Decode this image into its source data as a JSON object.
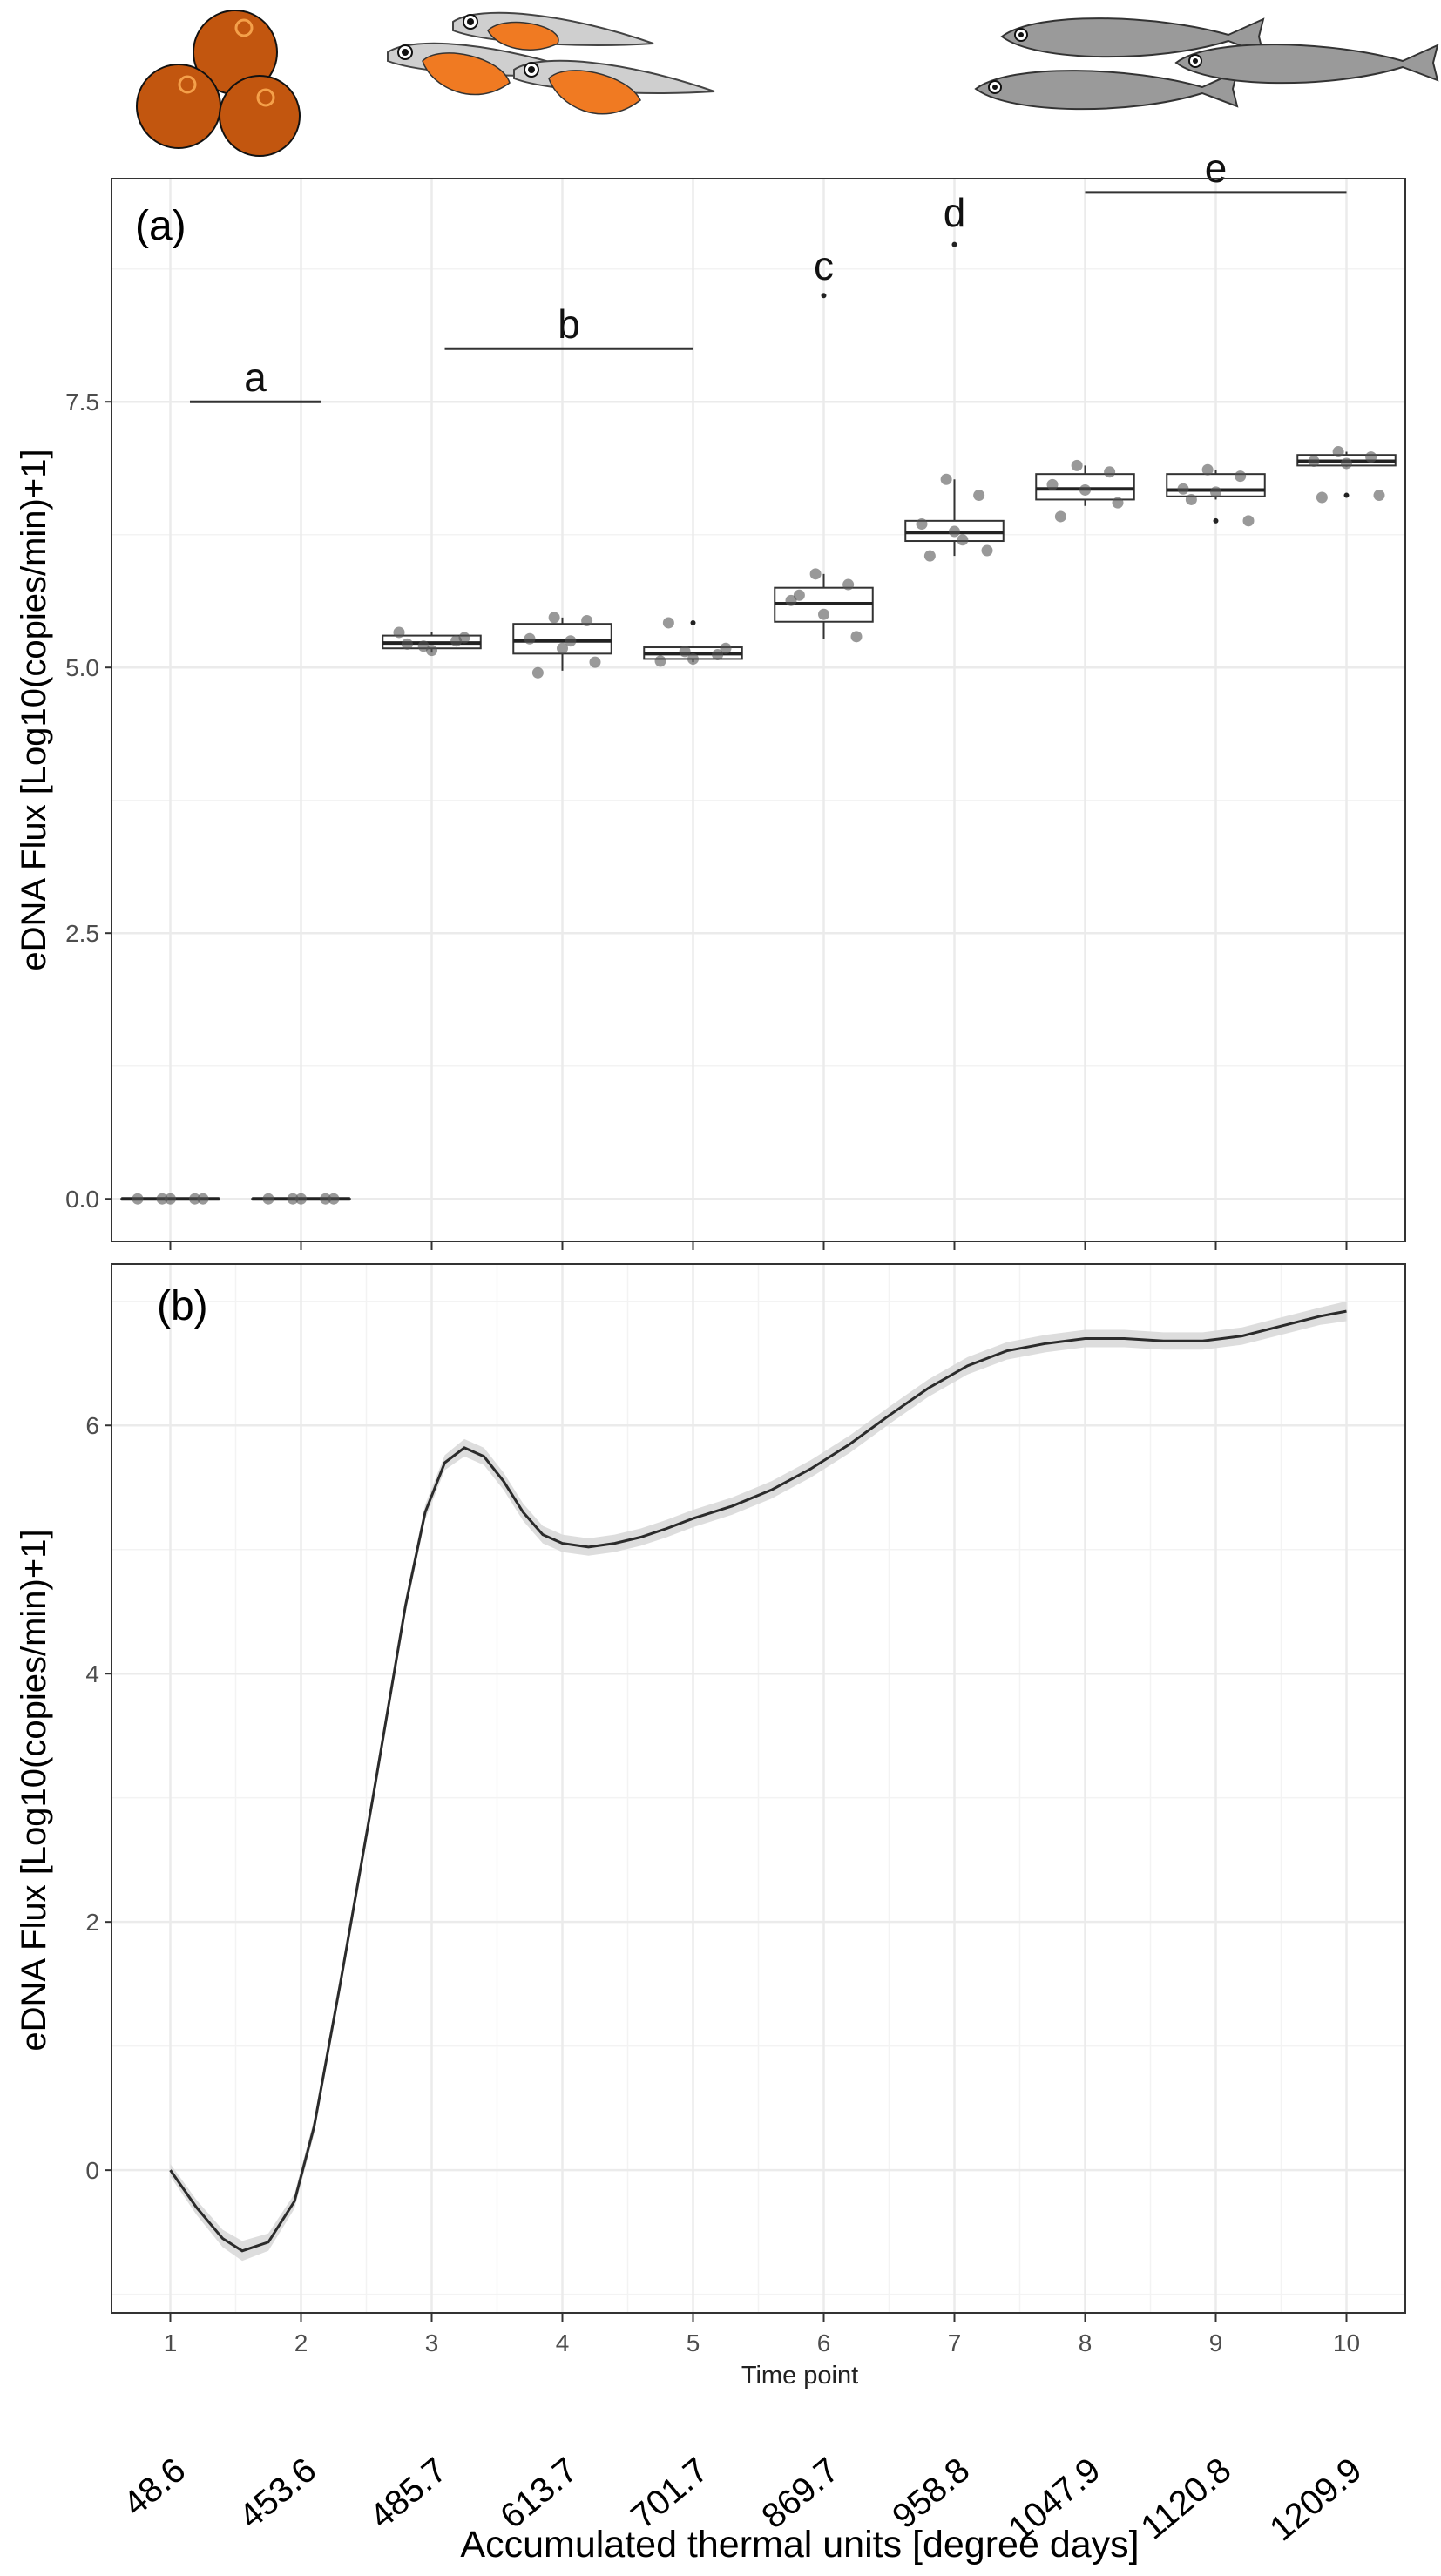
{
  "figure": {
    "xlabel": "Accumulated thermal units [degree days]",
    "shared_xlabel": "Time point",
    "atu_labels": [
      "48.6",
      "453.6",
      "485.7",
      "613.7",
      "701.7",
      "869.7",
      "958.8",
      "1047.9",
      "1120.8",
      "1209.9"
    ],
    "illustrations": [
      "eggs-illustration",
      "larvae-illustration",
      "juvenile-fish-illustration"
    ],
    "colors": {
      "egg": "#c2560f",
      "larva_yolk": "#f07a22",
      "fish_body": "#9a9a9a",
      "panel_border": "#333333",
      "grid": "#ebebeb",
      "line": "#2b2b2b",
      "ribbon": "#d9d9d9"
    }
  },
  "chart_data": [
    {
      "panel": "(a)",
      "type": "box",
      "ylabel": "eDNA Flux [Log10(copies/min)+1]",
      "categories": [
        1,
        2,
        3,
        4,
        5,
        6,
        7,
        8,
        9,
        10
      ],
      "ylim": [
        -0.4,
        9.6
      ],
      "yticks": [
        "0.0",
        "2.5",
        "5.0",
        "7.5"
      ],
      "ytick_values": [
        0,
        2.5,
        5,
        7.5
      ],
      "grid": true,
      "boxes": [
        {
          "x": 1,
          "min": 0,
          "q1": 0,
          "median": 0,
          "q3": 0,
          "max": 0,
          "outliers": []
        },
        {
          "x": 2,
          "min": 0,
          "q1": 0,
          "median": 0,
          "q3": 0,
          "max": 0,
          "outliers": []
        },
        {
          "x": 3,
          "min": 5.14,
          "q1": 5.18,
          "median": 5.23,
          "q3": 5.3,
          "max": 5.33,
          "outliers": []
        },
        {
          "x": 4,
          "min": 4.97,
          "q1": 5.13,
          "median": 5.25,
          "q3": 5.41,
          "max": 5.47,
          "outliers": []
        },
        {
          "x": 5,
          "min": 5.05,
          "q1": 5.08,
          "median": 5.13,
          "q3": 5.19,
          "max": 5.2,
          "outliers": [
            5.42
          ]
        },
        {
          "x": 6,
          "min": 5.27,
          "q1": 5.43,
          "median": 5.6,
          "q3": 5.75,
          "max": 5.88,
          "outliers": [
            8.5
          ]
        },
        {
          "x": 7,
          "min": 6.05,
          "q1": 6.19,
          "median": 6.27,
          "q3": 6.38,
          "max": 6.77,
          "outliers": [
            8.98
          ]
        },
        {
          "x": 8,
          "min": 6.52,
          "q1": 6.58,
          "median": 6.68,
          "q3": 6.82,
          "max": 6.9,
          "outliers": []
        },
        {
          "x": 9,
          "min": 6.58,
          "q1": 6.61,
          "median": 6.67,
          "q3": 6.82,
          "max": 6.86,
          "outliers": [
            6.38
          ]
        },
        {
          "x": 10,
          "min": 6.89,
          "q1": 6.9,
          "median": 6.94,
          "q3": 7.0,
          "max": 7.03,
          "outliers": [
            6.62
          ]
        }
      ],
      "points": [
        {
          "x": 1,
          "y": 0
        },
        {
          "x": 1,
          "y": 0
        },
        {
          "x": 1,
          "y": 0
        },
        {
          "x": 1,
          "y": 0
        },
        {
          "x": 1,
          "y": 0
        },
        {
          "x": 2,
          "y": 0
        },
        {
          "x": 2,
          "y": 0
        },
        {
          "x": 2,
          "y": 0
        },
        {
          "x": 2,
          "y": 0
        },
        {
          "x": 2,
          "y": 0
        },
        {
          "x": 3,
          "y": 5.2
        },
        {
          "x": 3,
          "y": 5.25
        },
        {
          "x": 3,
          "y": 5.33
        },
        {
          "x": 3,
          "y": 5.16
        },
        {
          "x": 3,
          "y": 5.28
        },
        {
          "x": 3,
          "y": 5.22
        },
        {
          "x": 4,
          "y": 5.47
        },
        {
          "x": 4,
          "y": 5.44
        },
        {
          "x": 4,
          "y": 5.27
        },
        {
          "x": 4,
          "y": 5.18
        },
        {
          "x": 4,
          "y": 5.05
        },
        {
          "x": 4,
          "y": 4.95
        },
        {
          "x": 4,
          "y": 5.25
        },
        {
          "x": 5,
          "y": 5.15
        },
        {
          "x": 5,
          "y": 5.12
        },
        {
          "x": 5,
          "y": 5.06
        },
        {
          "x": 5,
          "y": 5.08
        },
        {
          "x": 5,
          "y": 5.18
        },
        {
          "x": 5,
          "y": 5.42
        },
        {
          "x": 6,
          "y": 5.88
        },
        {
          "x": 6,
          "y": 5.78
        },
        {
          "x": 6,
          "y": 5.63
        },
        {
          "x": 6,
          "y": 5.5
        },
        {
          "x": 6,
          "y": 5.29
        },
        {
          "x": 6,
          "y": 5.68
        },
        {
          "x": 7,
          "y": 6.77
        },
        {
          "x": 7,
          "y": 6.62
        },
        {
          "x": 7,
          "y": 6.35
        },
        {
          "x": 7,
          "y": 6.28
        },
        {
          "x": 7,
          "y": 6.1
        },
        {
          "x": 7,
          "y": 6.05
        },
        {
          "x": 7,
          "y": 6.2
        },
        {
          "x": 8,
          "y": 6.9
        },
        {
          "x": 8,
          "y": 6.84
        },
        {
          "x": 8,
          "y": 6.72
        },
        {
          "x": 8,
          "y": 6.67
        },
        {
          "x": 8,
          "y": 6.55
        },
        {
          "x": 8,
          "y": 6.42
        },
        {
          "x": 9,
          "y": 6.86
        },
        {
          "x": 9,
          "y": 6.8
        },
        {
          "x": 9,
          "y": 6.68
        },
        {
          "x": 9,
          "y": 6.65
        },
        {
          "x": 9,
          "y": 6.38
        },
        {
          "x": 9,
          "y": 6.58
        },
        {
          "x": 10,
          "y": 7.03
        },
        {
          "x": 10,
          "y": 6.98
        },
        {
          "x": 10,
          "y": 6.94
        },
        {
          "x": 10,
          "y": 6.92
        },
        {
          "x": 10,
          "y": 6.62
        },
        {
          "x": 10,
          "y": 6.6
        }
      ],
      "annotations": [
        {
          "label": "a",
          "x_from": 1.15,
          "x_to": 2.15,
          "y": 7.5
        },
        {
          "label": "b",
          "x_from": 3.1,
          "x_to": 5.0,
          "y": 8.0
        },
        {
          "label": "c",
          "x_from": 6.0,
          "x_to": 6.0,
          "y": 8.55
        },
        {
          "label": "d",
          "x_from": 7.0,
          "x_to": 7.0,
          "y": 9.05
        },
        {
          "label": "e",
          "x_from": 8.0,
          "x_to": 10.0,
          "y": 9.47
        }
      ]
    },
    {
      "panel": "(b)",
      "type": "line",
      "ylabel": "eDNA Flux [Log10(copies/min)+1]",
      "xlabel": "Time point",
      "xlim": [
        0.55,
        10.45
      ],
      "ylim": [
        -1.15,
        7.3
      ],
      "xticks": [
        1,
        2,
        3,
        4,
        5,
        6,
        7,
        8,
        9,
        10
      ],
      "yticks": [
        0,
        2,
        4,
        6
      ],
      "grid": true,
      "x": [
        1.0,
        1.2,
        1.4,
        1.55,
        1.75,
        1.95,
        2.1,
        2.3,
        2.55,
        2.8,
        2.95,
        3.1,
        3.25,
        3.4,
        3.55,
        3.7,
        3.85,
        4.0,
        4.2,
        4.4,
        4.6,
        4.8,
        5.0,
        5.3,
        5.6,
        5.9,
        6.2,
        6.5,
        6.8,
        7.1,
        7.4,
        7.7,
        8.0,
        8.3,
        8.6,
        8.9,
        9.2,
        9.5,
        9.8,
        10.0
      ],
      "y": [
        0.0,
        -0.3,
        -0.55,
        -0.65,
        -0.58,
        -0.25,
        0.35,
        1.5,
        3.0,
        4.55,
        5.3,
        5.7,
        5.82,
        5.75,
        5.55,
        5.3,
        5.12,
        5.05,
        5.02,
        5.05,
        5.1,
        5.17,
        5.25,
        5.35,
        5.48,
        5.65,
        5.85,
        6.08,
        6.3,
        6.48,
        6.6,
        6.66,
        6.7,
        6.7,
        6.68,
        6.68,
        6.72,
        6.8,
        6.88,
        6.92
      ],
      "ribbon_halfwidth": [
        0.05,
        0.06,
        0.07,
        0.08,
        0.07,
        0.06,
        0.06,
        0.06,
        0.06,
        0.06,
        0.06,
        0.06,
        0.07,
        0.07,
        0.07,
        0.07,
        0.07,
        0.07,
        0.07,
        0.07,
        0.07,
        0.07,
        0.07,
        0.07,
        0.07,
        0.07,
        0.07,
        0.07,
        0.07,
        0.07,
        0.07,
        0.07,
        0.07,
        0.07,
        0.07,
        0.07,
        0.07,
        0.07,
        0.07,
        0.08
      ]
    }
  ]
}
